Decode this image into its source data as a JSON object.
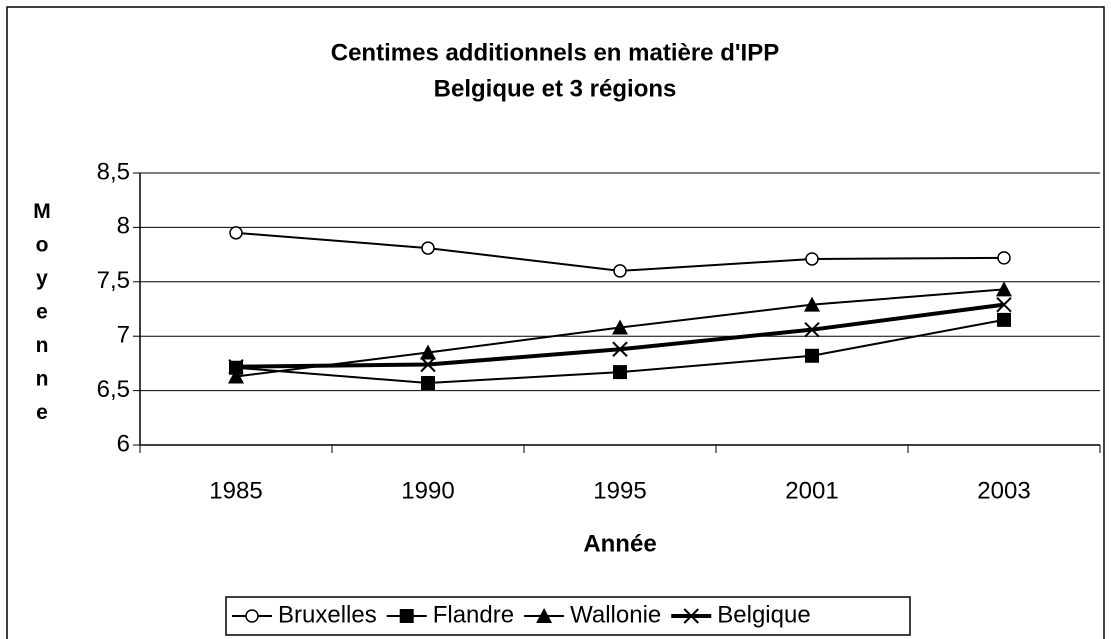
{
  "chart_data": {
    "type": "line",
    "title": "Centimes additionnels en matière d'IPP",
    "subtitle": "Belgique et 3 régions",
    "x_label": "Année",
    "y_label": "Moyenne",
    "categories": [
      "1985",
      "1990",
      "1995",
      "2001",
      "2003"
    ],
    "ylim": [
      6,
      8.5
    ],
    "yticks": [
      6,
      {
        "value": 6.5,
        "label": "6,5"
      },
      7,
      {
        "value": 7.5,
        "label": "7,5"
      },
      8,
      {
        "value": 8.5,
        "label": "8,5"
      }
    ],
    "grid": true,
    "legend": "bottom",
    "series": [
      {
        "name": "Bruxelles",
        "color": "#000000",
        "marker": "circle",
        "linewidth": 2,
        "values": [
          7.95,
          7.81,
          7.6,
          7.71,
          7.72
        ]
      },
      {
        "name": "Flandre",
        "color": "#000000",
        "marker": "square",
        "linewidth": 2,
        "values": [
          6.71,
          6.57,
          6.67,
          6.82,
          7.15
        ]
      },
      {
        "name": "Wallonie",
        "color": "#000000",
        "marker": "triangle",
        "linewidth": 2,
        "values": [
          6.63,
          6.85,
          7.08,
          7.29,
          7.43
        ]
      },
      {
        "name": "Belgique",
        "color": "#000000",
        "marker": "x",
        "linewidth": 4,
        "values": [
          6.72,
          6.74,
          6.88,
          7.06,
          7.29
        ]
      }
    ]
  }
}
